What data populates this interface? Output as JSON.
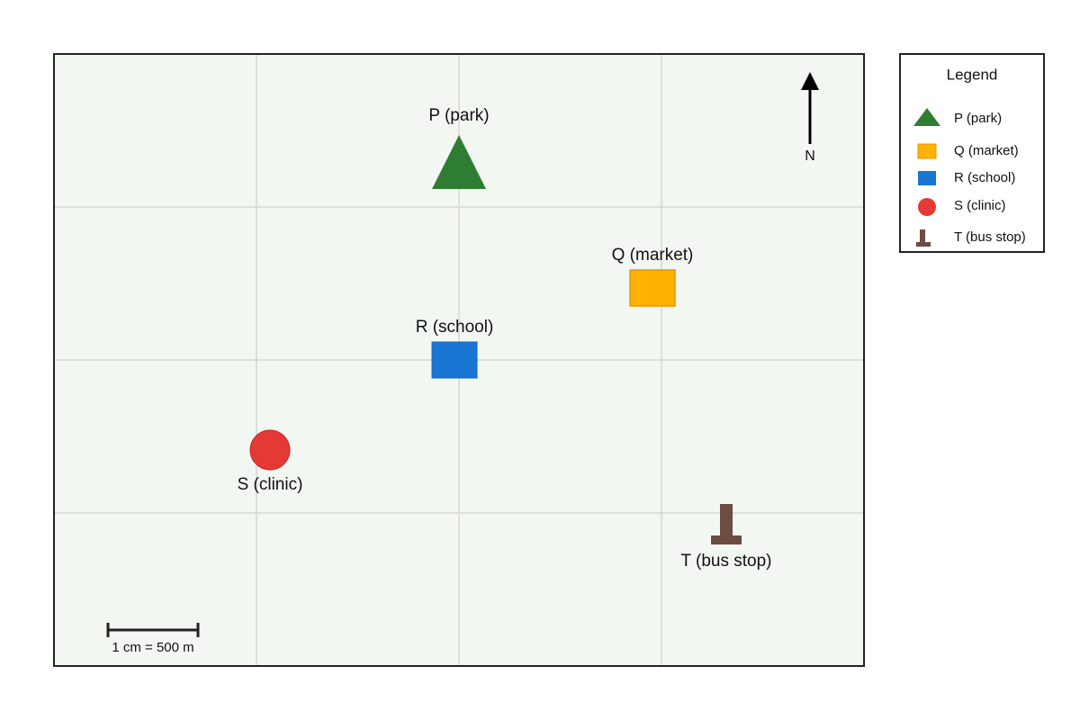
{
  "places": [
    {
      "label": "P (park)"
    },
    {
      "label": "Q (market)"
    },
    {
      "label": "R (school)"
    },
    {
      "label": "S (clinic)"
    },
    {
      "label": "T (bus stop)"
    }
  ],
  "legend": {
    "title": "Legend"
  },
  "north_label": "N",
  "scale_label": "1 cm = 500 m"
}
